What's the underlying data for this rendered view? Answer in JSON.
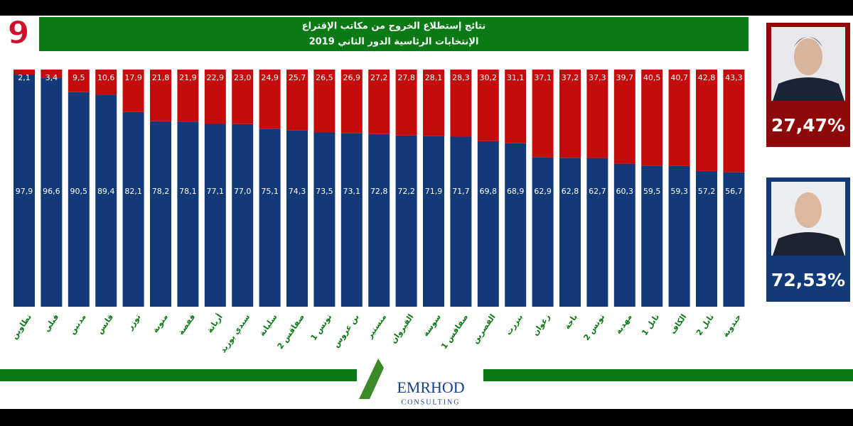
{
  "chart_data": {
    "type": "stacked-bar",
    "title": [
      "نتائج إستطلاع الخروج من مكاتب الإقتراع",
      "الإنتخابات الرئاسية الدور الثاني 2019"
    ],
    "categories": [
      "تطاوين",
      "قبلي",
      "مدنين",
      "قابس",
      "توزر",
      "منوبة",
      "قفصة",
      "أريانة",
      "سيدي بوزيد",
      "سليانة",
      "صفاقس 2",
      "تونس 1",
      "بن عروس",
      "منستير",
      "القيروان",
      "سوسة",
      "صفاقس 1",
      "القصرين",
      "بنزرت",
      "زغوان",
      "باجة",
      "تونس 2",
      "مهدية",
      "نابل 1",
      "الكاف",
      "نابل 2",
      "جندوبة"
    ],
    "series": [
      {
        "color": "#123a78",
        "values": [
          97.9,
          96.6,
          90.5,
          89.4,
          82.1,
          78.2,
          78.1,
          77.1,
          77.0,
          75.1,
          74.3,
          73.5,
          73.1,
          72.8,
          72.2,
          71.9,
          71.7,
          69.8,
          68.9,
          62.9,
          62.8,
          62.7,
          60.3,
          59.5,
          59.3,
          57.2,
          56.7
        ],
        "value_labels": [
          "97,9",
          "96,6",
          "90,5",
          "89,4",
          "82,1",
          "78,2",
          "78,1",
          "77,1",
          "77,0",
          "75,1",
          "74,3",
          "73,5",
          "73,1",
          "72,8",
          "72,2",
          "71,9",
          "71,7",
          "69,8",
          "68,9",
          "62,9",
          "62,8",
          "62,7",
          "60,3",
          "59,5",
          "59,3",
          "57,2",
          "56,7"
        ]
      },
      {
        "color": "#c40c0c",
        "values": [
          2.1,
          3.4,
          9.5,
          10.6,
          17.9,
          21.8,
          21.9,
          22.9,
          23.0,
          24.9,
          25.7,
          26.5,
          26.9,
          27.2,
          27.8,
          28.1,
          28.3,
          30.2,
          31.1,
          37.1,
          37.2,
          37.3,
          39.7,
          40.5,
          40.7,
          42.8,
          43.3
        ],
        "value_labels": [
          "2,1",
          "3,4",
          "9,5",
          "10,6",
          "17,9",
          "21,8",
          "21,9",
          "22,9",
          "23,0",
          "24,9",
          "25,7",
          "26,5",
          "26,9",
          "27,2",
          "27,8",
          "28,1",
          "28,3",
          "30,2",
          "31,1",
          "37,1",
          "37,2",
          "37,3",
          "39,7",
          "40,5",
          "40,7",
          "42,8",
          "43,3"
        ]
      }
    ],
    "ylim": [
      0,
      100
    ]
  },
  "channel": "9",
  "panels": [
    "27,47%",
    "72,53%"
  ],
  "logo": {
    "name": "EMRHOD",
    "sub": "CONSULTING"
  }
}
